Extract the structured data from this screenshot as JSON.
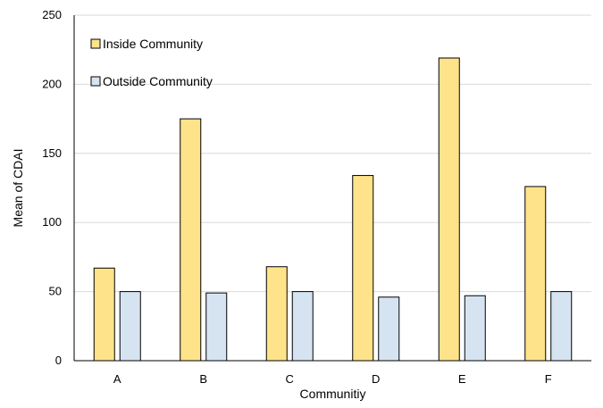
{
  "chart_data": {
    "type": "bar",
    "categories": [
      "A",
      "B",
      "C",
      "D",
      "E",
      "F"
    ],
    "series": [
      {
        "name": "Inside Community",
        "values": [
          67,
          175,
          68,
          134,
          219,
          126
        ],
        "color": "#FFE38A"
      },
      {
        "name": "Outside Community",
        "values": [
          50,
          49,
          50,
          46,
          47,
          50
        ],
        "color": "#D6E4F2"
      }
    ],
    "title": "",
    "xlabel": "Communitiy",
    "ylabel": "Mean of CDAI",
    "ylim": [
      0,
      250
    ],
    "yticks": [
      0,
      50,
      100,
      150,
      200,
      250
    ],
    "grid": true,
    "legend_position": "top-left"
  }
}
